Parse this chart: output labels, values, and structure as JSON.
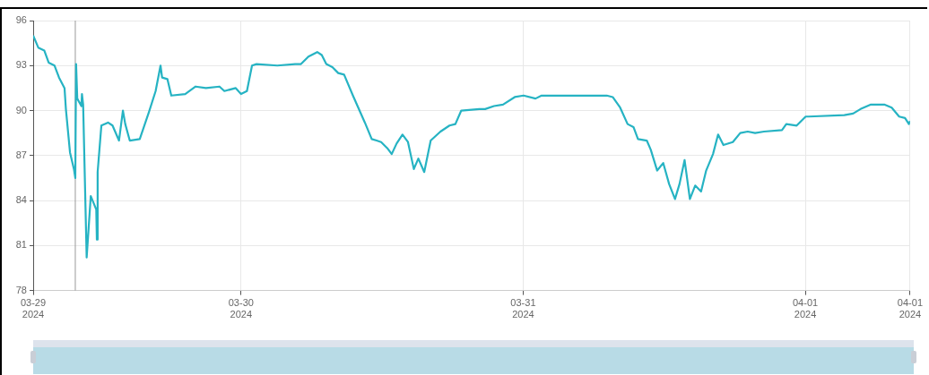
{
  "chart_data": {
    "type": "line",
    "x": [
      "2024-03-29T06:19",
      "2024-03-29T06:45",
      "2024-03-29T07:16",
      "2024-03-29T07:38",
      "2024-03-29T08:08",
      "2024-03-29T08:31",
      "2024-03-29T08:59",
      "2024-03-29T09:06",
      "2024-03-29T09:27",
      "2024-03-29T09:47",
      "2024-03-29T09:54",
      "2024-03-29T09:58",
      "2024-03-29T10:04",
      "2024-03-29T10:25",
      "2024-03-29T10:28",
      "2024-03-29T10:34",
      "2024-03-29T10:52",
      "2024-03-29T11:13",
      "2024-03-29T11:41",
      "2024-03-29T11:44",
      "2024-03-29T11:48",
      "2024-03-29T12:07",
      "2024-03-29T12:41",
      "2024-03-29T13:04",
      "2024-03-29T13:37",
      "2024-03-29T13:57",
      "2024-03-29T14:09",
      "2024-03-29T14:32",
      "2024-03-29T15:23",
      "2024-03-29T16:10",
      "2024-03-29T16:44",
      "2024-03-29T17:09",
      "2024-03-29T17:17",
      "2024-03-29T17:44",
      "2024-03-29T18:04",
      "2024-03-29T19:15",
      "2024-03-29T20:08",
      "2024-03-29T21:01",
      "2024-03-29T22:10",
      "2024-03-29T22:35",
      "2024-03-29T23:33",
      "2024-03-30T00:00",
      "2024-03-30T00:30",
      "2024-03-30T00:56",
      "2024-03-30T01:19",
      "2024-03-30T03:05",
      "2024-03-30T04:36",
      "2024-03-30T05:06",
      "2024-03-30T05:44",
      "2024-03-30T06:29",
      "2024-03-30T06:52",
      "2024-03-30T07:15",
      "2024-03-30T07:46",
      "2024-03-30T08:16",
      "2024-03-30T08:46",
      "2024-03-30T09:31",
      "2024-03-30T10:32",
      "2024-03-30T11:07",
      "2024-03-30T11:32",
      "2024-03-30T11:55",
      "2024-03-30T12:26",
      "2024-03-30T12:49",
      "2024-03-30T13:14",
      "2024-03-30T13:44",
      "2024-03-30T14:12",
      "2024-03-30T14:42",
      "2024-03-30T15:05",
      "2024-03-30T15:35",
      "2024-03-30T16:08",
      "2024-03-30T16:58",
      "2024-03-30T17:44",
      "2024-03-30T18:14",
      "2024-03-30T18:44",
      "2024-03-30T20:16",
      "2024-03-30T20:46",
      "2024-03-30T21:31",
      "2024-03-30T22:17",
      "2024-03-30T23:17",
      "2024-03-31T00:02",
      "2024-03-31T01:03",
      "2024-03-31T01:34",
      "2024-03-31T03:20",
      "2024-03-31T07:07",
      "2024-03-31T07:37",
      "2024-03-31T08:15",
      "2024-03-31T08:53",
      "2024-03-31T09:23",
      "2024-03-31T09:46",
      "2024-03-31T10:31",
      "2024-03-31T10:51",
      "2024-03-31T11:24",
      "2024-03-31T11:55",
      "2024-03-31T12:25",
      "2024-03-31T12:55",
      "2024-03-31T13:18",
      "2024-03-31T13:44",
      "2024-03-31T14:11",
      "2024-03-31T14:38",
      "2024-03-31T15:08",
      "2024-03-31T15:34",
      "2024-03-31T16:09",
      "2024-03-31T16:35",
      "2024-03-31T17:02",
      "2024-03-31T17:50",
      "2024-03-31T18:28",
      "2024-03-31T19:06",
      "2024-03-31T19:44",
      "2024-03-31T20:29",
      "2024-03-31T22:01",
      "2024-03-31T22:23",
      "2024-03-31T23:16",
      "2024-04-01T00:02",
      "2024-04-01T00:17",
      "2024-04-01T03:19",
      "2024-04-01T04:04",
      "2024-04-01T04:42",
      "2024-04-01T05:35",
      "2024-04-01T06:43",
      "2024-04-01T07:21",
      "2024-04-01T07:59",
      "2024-04-01T08:29",
      "2024-04-01T08:49",
      "2024-04-01T08:55"
    ],
    "series": [
      {
        "color": "#26b3c3",
        "values": [
          95.0,
          94.2,
          94.0,
          93.2,
          93.0,
          92.2,
          91.5,
          90.1,
          87.2,
          86.1,
          85.5,
          93.1,
          90.8,
          90.3,
          91.1,
          90.4,
          80.2,
          84.3,
          83.4,
          81.4,
          85.9,
          89.0,
          89.2,
          89.0,
          88.0,
          90.0,
          89.1,
          88.0,
          88.1,
          89.9,
          91.3,
          93.0,
          92.2,
          92.1,
          91.0,
          91.1,
          91.6,
          91.5,
          91.6,
          91.3,
          91.5,
          91.1,
          91.3,
          93.0,
          93.1,
          93.0,
          93.1,
          93.1,
          93.6,
          93.9,
          93.7,
          93.1,
          92.9,
          92.5,
          92.4,
          91.0,
          89.2,
          88.1,
          88.0,
          87.9,
          87.5,
          87.1,
          87.8,
          88.4,
          87.9,
          86.1,
          86.8,
          85.9,
          88.0,
          88.6,
          89.0,
          89.1,
          90.0,
          90.1,
          90.1,
          90.3,
          90.4,
          90.9,
          91.0,
          90.8,
          91.0,
          91.0,
          91.0,
          90.9,
          90.2,
          89.1,
          88.9,
          88.1,
          88.0,
          87.4,
          86.0,
          86.5,
          85.1,
          84.1,
          85.1,
          86.7,
          84.1,
          85.0,
          84.6,
          86.0,
          87.1,
          88.4,
          87.7,
          87.9,
          88.5,
          88.6,
          88.5,
          88.6,
          88.7,
          89.1,
          89.0,
          89.6,
          89.6,
          89.7,
          89.8,
          90.1,
          90.4,
          90.4,
          90.2,
          89.6,
          89.5,
          89.1,
          89.3
        ]
      }
    ],
    "xlim": [
      "2024-03-29T06:19",
      "2024-04-01T08:55"
    ],
    "xticks": [
      {
        "value": "2024-03-29T06:19",
        "label": "03-29\n2024"
      },
      {
        "value": "2024-03-30",
        "label": "03-30\n2024"
      },
      {
        "value": "2024-03-31",
        "label": "03-31\n2024"
      },
      {
        "value": "2024-04-01",
        "label": "04-01\n2024"
      },
      {
        "value": "2024-04-01T08:55",
        "label": "04-01\n2024"
      }
    ],
    "ylim": [
      78,
      96
    ],
    "yticks": [
      78,
      81,
      84,
      87,
      90,
      93,
      96
    ],
    "ref_lines": [
      {
        "axis": "x",
        "value": "2024-03-29T09:54",
        "color": "#999999"
      }
    ],
    "grid": true,
    "legend": false,
    "marker": "none",
    "line_style": "solid"
  }
}
